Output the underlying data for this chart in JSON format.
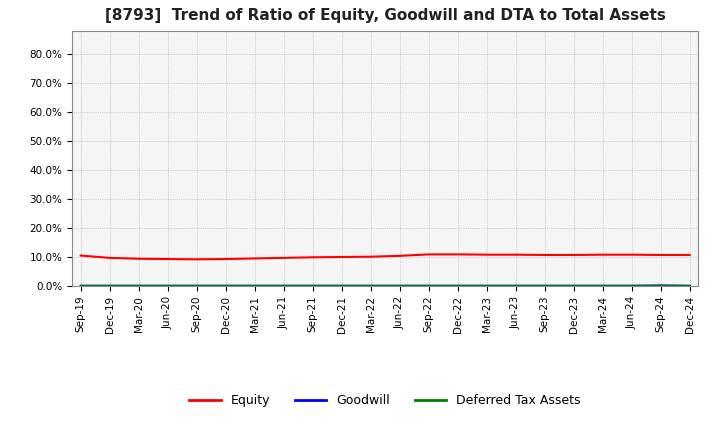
{
  "title": "[8793]  Trend of Ratio of Equity, Goodwill and DTA to Total Assets",
  "x_labels": [
    "Sep-19",
    "Dec-19",
    "Mar-20",
    "Jun-20",
    "Sep-20",
    "Dec-20",
    "Mar-21",
    "Jun-21",
    "Sep-21",
    "Dec-21",
    "Mar-22",
    "Jun-22",
    "Sep-22",
    "Dec-22",
    "Mar-23",
    "Jun-23",
    "Sep-23",
    "Dec-23",
    "Mar-24",
    "Jun-24",
    "Sep-24",
    "Dec-24"
  ],
  "equity": [
    0.105,
    0.097,
    0.094,
    0.093,
    0.092,
    0.093,
    0.095,
    0.097,
    0.099,
    0.1,
    0.101,
    0.104,
    0.109,
    0.109,
    0.108,
    0.108,
    0.107,
    0.107,
    0.108,
    0.108,
    0.107,
    0.107
  ],
  "goodwill": [
    0.001,
    0.001,
    0.001,
    0.001,
    0.001,
    0.001,
    0.001,
    0.001,
    0.001,
    0.001,
    0.001,
    0.001,
    0.001,
    0.001,
    0.001,
    0.001,
    0.001,
    0.001,
    0.001,
    0.001,
    0.002,
    0.001
  ],
  "dta": [
    0.001,
    0.001,
    0.001,
    0.001,
    0.001,
    0.001,
    0.001,
    0.001,
    0.001,
    0.001,
    0.001,
    0.001,
    0.001,
    0.001,
    0.001,
    0.001,
    0.001,
    0.001,
    0.001,
    0.001,
    0.001,
    0.001
  ],
  "equity_color": "#ff0000",
  "goodwill_color": "#0000ff",
  "dta_color": "#008000",
  "ylim": [
    0.0,
    0.88
  ],
  "yticks": [
    0.0,
    0.1,
    0.2,
    0.3,
    0.4,
    0.5,
    0.6,
    0.7,
    0.8
  ],
  "ytick_labels": [
    "0.0%",
    "10.0%",
    "20.0%",
    "30.0%",
    "40.0%",
    "50.0%",
    "60.0%",
    "70.0%",
    "80.0%"
  ],
  "bg_color": "#ffffff",
  "plot_bg_color": "#f5f5f5",
  "grid_color": "#aaaaaa",
  "title_fontsize": 11,
  "tick_fontsize": 7.5,
  "legend_fontsize": 9,
  "spine_color": "#888888"
}
